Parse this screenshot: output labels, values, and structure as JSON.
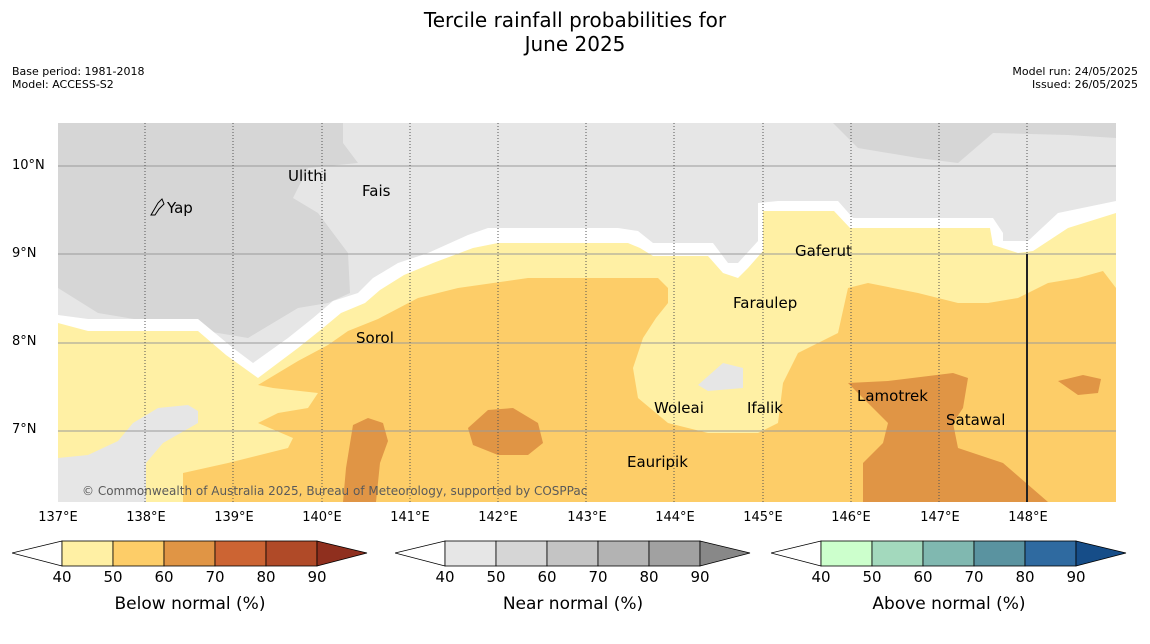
{
  "title": {
    "line1": "Tercile rainfall probabilities for",
    "line2": "June 2025"
  },
  "meta": {
    "base_period": "Base period: 1981-2018",
    "model": "Model: ACCESS-S2",
    "model_run": "Model run: 24/05/2025",
    "issued": "Issued: 26/05/2025"
  },
  "map": {
    "lat_labels": [
      "10°N",
      "9°N",
      "8°N",
      "7°N"
    ],
    "lon_labels": [
      "137°E",
      "138°E",
      "139°E",
      "140°E",
      "141°E",
      "142°E",
      "143°E",
      "144°E",
      "145°E",
      "146°E",
      "147°E",
      "148°E"
    ],
    "places": [
      "Yap",
      "Ulithi",
      "Fais",
      "Gaferut",
      "Faraulep",
      "Sorol",
      "Woleai",
      "Ifalik",
      "Lamotrek",
      "Satawal",
      "Eauripik"
    ],
    "copyright": "© Commonwealth of Australia 2025, Bureau of Meteorology, supported by COSPPac"
  },
  "colorbars": [
    {
      "title": "Below normal (%)",
      "ticks": [
        "40",
        "50",
        "60",
        "70",
        "80",
        "90"
      ],
      "colors": [
        "#fff0a4",
        "#fdcd68",
        "#e09545",
        "#cc6433",
        "#b04a28",
        "#8f2f1e"
      ]
    },
    {
      "title": "Near normal (%)",
      "ticks": [
        "40",
        "50",
        "60",
        "70",
        "80",
        "90"
      ],
      "colors": [
        "#e6e6e6",
        "#d6d6d6",
        "#c4c4c4",
        "#b3b3b3",
        "#a1a1a1",
        "#888888"
      ]
    },
    {
      "title": "Above normal (%)",
      "ticks": [
        "40",
        "50",
        "60",
        "70",
        "80",
        "90"
      ],
      "colors": [
        "#ccffcc",
        "#a3d9bd",
        "#80b8b0",
        "#5a93a0",
        "#2f6aa0",
        "#164d88"
      ]
    }
  ]
}
